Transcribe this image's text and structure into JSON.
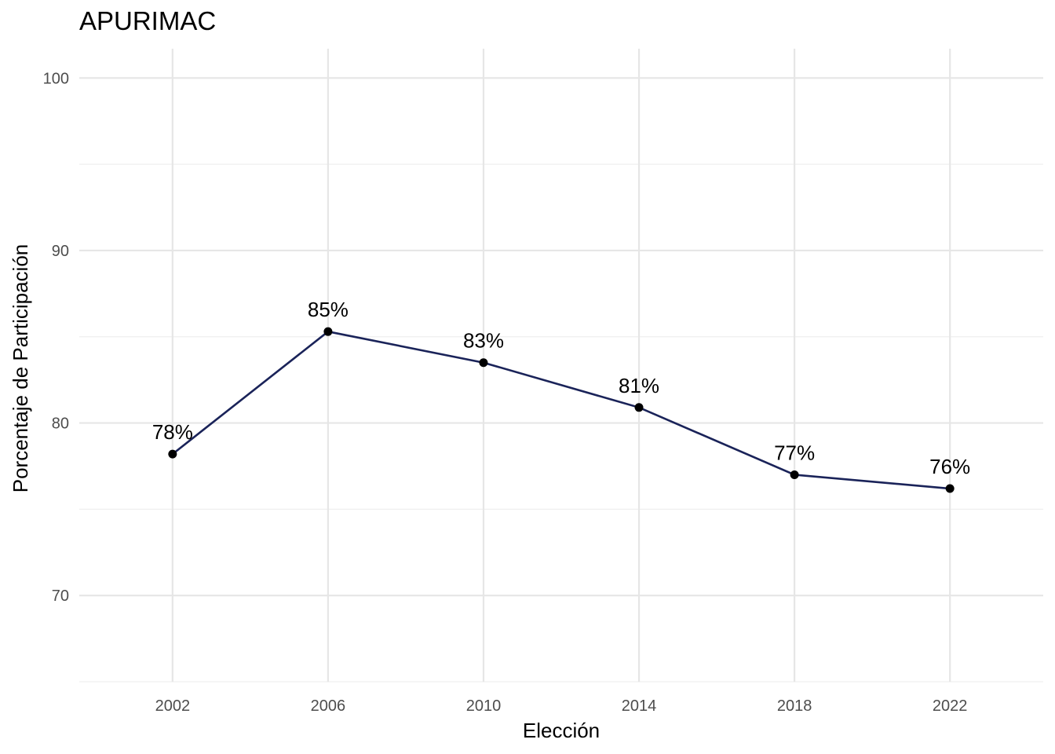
{
  "chart_data": {
    "type": "line",
    "title": "APURIMAC",
    "xlabel": "Elección",
    "ylabel": "Porcentaje de Participación",
    "x": [
      2002,
      2006,
      2010,
      2014,
      2018,
      2022
    ],
    "values": [
      78.2,
      85.3,
      83.5,
      80.9,
      77.0,
      76.2
    ],
    "labels": [
      "78%",
      "85%",
      "83%",
      "81%",
      "77%",
      "76%"
    ],
    "x_ticks": [
      "2002",
      "2006",
      "2010",
      "2014",
      "2018",
      "2022"
    ],
    "y_ticks": [
      "70",
      "80",
      "90",
      "100"
    ],
    "xlim": [
      1999.6,
      2024.4
    ],
    "ylim": [
      65,
      101.7
    ],
    "grid": true,
    "line_color": "#1a2359",
    "point_color": "#000000"
  }
}
